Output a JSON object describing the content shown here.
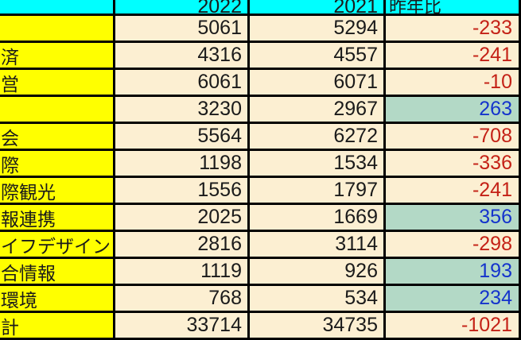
{
  "table": {
    "header": {
      "label": "",
      "y2022": "2022",
      "y2021": "2021",
      "yoy": "昨年比"
    },
    "rows": [
      {
        "label": "",
        "v2022": "5061",
        "v2021": "5294",
        "yoy": "-233"
      },
      {
        "label": "済",
        "v2022": "4316",
        "v2021": "4557",
        "yoy": "-241"
      },
      {
        "label": "営",
        "v2022": "6061",
        "v2021": "6071",
        "yoy": "-10"
      },
      {
        "label": "",
        "v2022": "3230",
        "v2021": "2967",
        "yoy": "263"
      },
      {
        "label": "会",
        "v2022": "5564",
        "v2021": "6272",
        "yoy": "-708"
      },
      {
        "label": "際",
        "v2022": "1198",
        "v2021": "1534",
        "yoy": "-336"
      },
      {
        "label": "際観光",
        "v2022": "1556",
        "v2021": "1797",
        "yoy": "-241"
      },
      {
        "label": "報連携",
        "v2022": "2025",
        "v2021": "1669",
        "yoy": "356"
      },
      {
        "label": "イフデザイン",
        "v2022": "2816",
        "v2021": "3114",
        "yoy": "-298"
      },
      {
        "label": "合情報",
        "v2022": "1119",
        "v2021": "926",
        "yoy": "193"
      },
      {
        "label": "環境",
        "v2022": "768",
        "v2021": "534",
        "yoy": "234"
      },
      {
        "label": "計",
        "v2022": "33714",
        "v2021": "34735",
        "yoy": "-1021"
      }
    ]
  },
  "colors": {
    "header_bg": "#00FFFF",
    "label_bg": "#FFFF00",
    "data_bg": "#FCEFD2",
    "positive_bg": "#B3D9C6",
    "negative_text": "#C42116",
    "positive_text": "#1433CC",
    "grid": "#000000"
  }
}
